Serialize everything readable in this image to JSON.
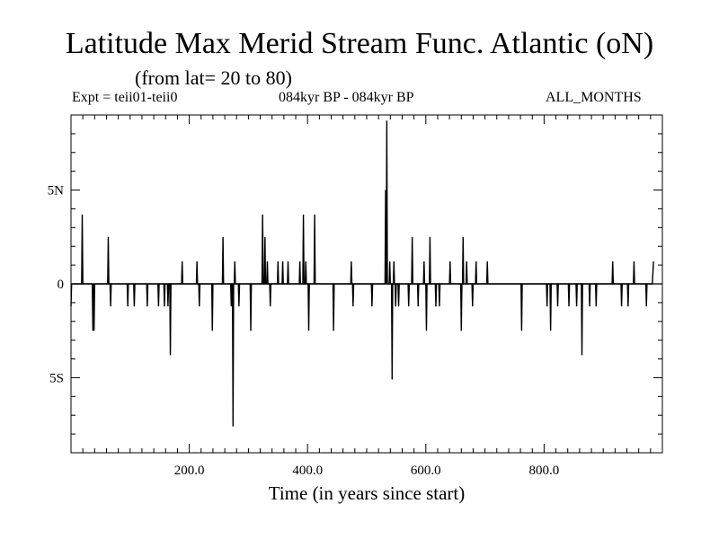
{
  "header": {
    "title": "Latitude Max Merid Stream Func. Atlantic (oN)",
    "subtitle": "(from lat= 20 to 80)",
    "expt": "Expt = teii01-teii0",
    "period": "084kyr BP - 084kyr BP",
    "months": "ALL_MONTHS"
  },
  "chart_data": {
    "type": "line",
    "xlabel": "Time (in years since start)",
    "ylabel": "",
    "xlim": [
      0,
      1000
    ],
    "ylim": [
      -9,
      9
    ],
    "xticks": [
      {
        "value": 200,
        "label": "200.0"
      },
      {
        "value": 400,
        "label": "400.0"
      },
      {
        "value": 600,
        "label": "600.0"
      },
      {
        "value": 800,
        "label": "800.0"
      }
    ],
    "yticks": [
      {
        "value": 5,
        "label": "5N"
      },
      {
        "value": 0,
        "label": "0"
      },
      {
        "value": -5,
        "label": "5S"
      }
    ],
    "grid": false,
    "series": [
      {
        "color": "#000000",
        "points": [
          [
            0,
            -1.2
          ],
          [
            1,
            0
          ],
          [
            18,
            0
          ],
          [
            19,
            3.7
          ],
          [
            20,
            0
          ],
          [
            36,
            0
          ],
          [
            37,
            -2.5
          ],
          [
            38,
            0
          ],
          [
            39,
            -2.5
          ],
          [
            40,
            0
          ],
          [
            62,
            0
          ],
          [
            63,
            2.5
          ],
          [
            64,
            0
          ],
          [
            66,
            0
          ],
          [
            67,
            -1.2
          ],
          [
            68,
            0
          ],
          [
            95,
            0
          ],
          [
            96,
            -1.2
          ],
          [
            97,
            0
          ],
          [
            106,
            0
          ],
          [
            107,
            -1.2
          ],
          [
            108,
            0
          ],
          [
            128,
            0
          ],
          [
            129,
            -1.2
          ],
          [
            130,
            0
          ],
          [
            147,
            0
          ],
          [
            148,
            -1.2
          ],
          [
            149,
            0
          ],
          [
            157,
            0
          ],
          [
            158,
            -1.2
          ],
          [
            159,
            0
          ],
          [
            163,
            0
          ],
          [
            164,
            -1.2
          ],
          [
            165,
            0
          ],
          [
            167,
            0
          ],
          [
            168,
            -3.8
          ],
          [
            169,
            0
          ],
          [
            187,
            0
          ],
          [
            188,
            1.2
          ],
          [
            189,
            0
          ],
          [
            212,
            0
          ],
          [
            213,
            1.2
          ],
          [
            214,
            0
          ],
          [
            216,
            0
          ],
          [
            217,
            -1.2
          ],
          [
            218,
            0
          ],
          [
            238,
            0
          ],
          [
            239,
            -2.5
          ],
          [
            240,
            0
          ],
          [
            256,
            0
          ],
          [
            257,
            2.5
          ],
          [
            258,
            0
          ],
          [
            270,
            0
          ],
          [
            271,
            -1.2
          ],
          [
            272,
            0
          ],
          [
            273,
            0
          ],
          [
            274,
            -7.6
          ],
          [
            275,
            0
          ],
          [
            276,
            0
          ],
          [
            277,
            1.2
          ],
          [
            278,
            0
          ],
          [
            283,
            0
          ],
          [
            284,
            -1.2
          ],
          [
            285,
            0
          ],
          [
            303,
            0
          ],
          [
            304,
            -2.5
          ],
          [
            305,
            0
          ],
          [
            323,
            0
          ],
          [
            324,
            3.7
          ],
          [
            325,
            0
          ],
          [
            327,
            0
          ],
          [
            328,
            2.5
          ],
          [
            329,
            0
          ],
          [
            331,
            0
          ],
          [
            332,
            1.2
          ],
          [
            333,
            0
          ],
          [
            336,
            0
          ],
          [
            337,
            -1.2
          ],
          [
            338,
            0
          ],
          [
            349,
            0
          ],
          [
            350,
            1.2
          ],
          [
            351,
            0
          ],
          [
            357,
            0
          ],
          [
            358,
            1.2
          ],
          [
            359,
            0
          ],
          [
            366,
            0
          ],
          [
            367,
            1.2
          ],
          [
            368,
            0
          ],
          [
            386,
            0
          ],
          [
            387,
            1.2
          ],
          [
            388,
            0
          ],
          [
            392,
            0
          ],
          [
            393,
            3.7
          ],
          [
            394,
            0
          ],
          [
            396,
            0
          ],
          [
            397,
            1.2
          ],
          [
            398,
            0
          ],
          [
            401,
            0
          ],
          [
            402,
            -2.5
          ],
          [
            403,
            0
          ],
          [
            411,
            0
          ],
          [
            412,
            3.7
          ],
          [
            413,
            0
          ],
          [
            443,
            0
          ],
          [
            444,
            -2.5
          ],
          [
            445,
            0
          ],
          [
            473,
            0
          ],
          [
            474,
            1.2
          ],
          [
            475,
            0
          ],
          [
            476,
            0
          ],
          [
            477,
            -1.2
          ],
          [
            478,
            0
          ],
          [
            508,
            0
          ],
          [
            509,
            -1.2
          ],
          [
            510,
            0
          ],
          [
            531,
            0
          ],
          [
            532,
            5
          ],
          [
            533,
            0
          ],
          [
            533,
            0
          ],
          [
            534,
            8.7
          ],
          [
            535,
            0
          ],
          [
            538,
            0
          ],
          [
            539,
            1.2
          ],
          [
            540,
            0
          ],
          [
            542,
            0
          ],
          [
            543,
            -5.1
          ],
          [
            544,
            0
          ],
          [
            545,
            0
          ],
          [
            546,
            1.2
          ],
          [
            547,
            0
          ],
          [
            548,
            0
          ],
          [
            549,
            -1.2
          ],
          [
            550,
            0
          ],
          [
            553,
            0
          ],
          [
            554,
            -1.2
          ],
          [
            555,
            0
          ],
          [
            570,
            0
          ],
          [
            571,
            -1.2
          ],
          [
            572,
            0
          ],
          [
            576,
            0
          ],
          [
            577,
            2.5
          ],
          [
            578,
            0
          ],
          [
            586,
            0
          ],
          [
            587,
            -1.2
          ],
          [
            588,
            0
          ],
          [
            596,
            0
          ],
          [
            597,
            1.2
          ],
          [
            598,
            0
          ],
          [
            600,
            0
          ],
          [
            601,
            -2.5
          ],
          [
            602,
            0
          ],
          [
            606,
            0
          ],
          [
            607,
            2.5
          ],
          [
            608,
            0
          ],
          [
            616,
            0
          ],
          [
            617,
            -1.2
          ],
          [
            618,
            0
          ],
          [
            622,
            0
          ],
          [
            623,
            -1.2
          ],
          [
            624,
            0
          ],
          [
            640,
            0
          ],
          [
            641,
            1.2
          ],
          [
            642,
            0
          ],
          [
            659,
            0
          ],
          [
            660,
            -2.5
          ],
          [
            661,
            0
          ],
          [
            662,
            0
          ],
          [
            663,
            2.5
          ],
          [
            664,
            0
          ],
          [
            668,
            0
          ],
          [
            669,
            1.2
          ],
          [
            670,
            0
          ],
          [
            678,
            0
          ],
          [
            679,
            -1.2
          ],
          [
            680,
            0
          ],
          [
            684,
            0
          ],
          [
            685,
            1.2
          ],
          [
            686,
            0
          ],
          [
            703,
            0
          ],
          [
            704,
            1.2
          ],
          [
            705,
            0
          ],
          [
            761,
            0
          ],
          [
            762,
            -2.5
          ],
          [
            763,
            0
          ],
          [
            804,
            0
          ],
          [
            805,
            -1.2
          ],
          [
            806,
            0
          ],
          [
            810,
            0
          ],
          [
            811,
            -2.5
          ],
          [
            812,
            0
          ],
          [
            822,
            0
          ],
          [
            823,
            -1.2
          ],
          [
            824,
            0
          ],
          [
            841,
            0
          ],
          [
            842,
            -1.2
          ],
          [
            843,
            0
          ],
          [
            854,
            0
          ],
          [
            855,
            -1.2
          ],
          [
            856,
            0
          ],
          [
            863,
            0
          ],
          [
            864,
            -3.8
          ],
          [
            865,
            0
          ],
          [
            876,
            0
          ],
          [
            877,
            -1.2
          ],
          [
            878,
            0
          ],
          [
            887,
            0
          ],
          [
            888,
            -1.2
          ],
          [
            889,
            0
          ],
          [
            915,
            0
          ],
          [
            916,
            1.2
          ],
          [
            917,
            0
          ],
          [
            930,
            0
          ],
          [
            931,
            -1.2
          ],
          [
            932,
            0
          ],
          [
            941,
            0
          ],
          [
            942,
            -1.2
          ],
          [
            943,
            0
          ],
          [
            951,
            0
          ],
          [
            952,
            1.2
          ],
          [
            953,
            0
          ],
          [
            972,
            0
          ],
          [
            973,
            -1.2
          ],
          [
            974,
            0
          ],
          [
            983,
            0
          ],
          [
            985,
            1.2
          ]
        ]
      }
    ]
  }
}
